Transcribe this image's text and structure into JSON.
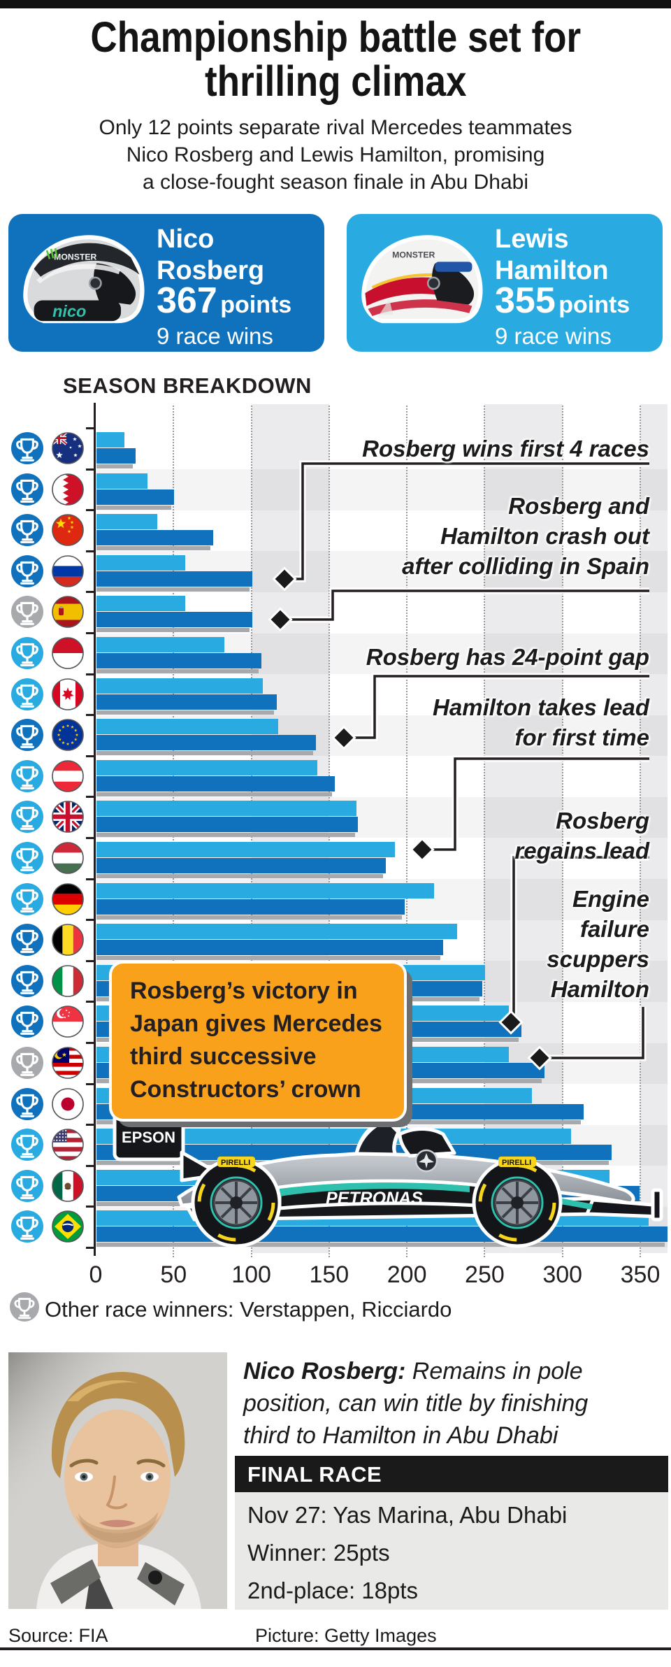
{
  "header": {
    "title_line1": "Championship battle set for",
    "title_line2": "thrilling climax",
    "subtitle_lines": [
      "Only 12 points separate rival Mercedes teammates",
      "Nico Rosberg and Lewis Hamilton, promising",
      "a close-fought season finale in Abu Dhabi"
    ]
  },
  "colors": {
    "rosberg": "#1072bc",
    "hamilton": "#29abe2",
    "other": "#a7a9ac",
    "bar_shadow": "#a7a9ac",
    "callout_orange": "#f9a11b"
  },
  "drivers": {
    "rosberg": {
      "first": "Nico",
      "last": "Rosberg",
      "points": "367",
      "points_label": "points",
      "wins": "9 race wins"
    },
    "hamilton": {
      "first": "Lewis",
      "last": "Hamilton",
      "points": "355",
      "points_label": "points",
      "wins": "9 race wins"
    }
  },
  "chart_data": {
    "type": "bar",
    "title": "SEASON BREAKDOWN",
    "orientation": "horizontal",
    "xlim": [
      0,
      350
    ],
    "x_ticks": [
      0,
      50,
      100,
      150,
      200,
      250,
      300,
      350
    ],
    "grid": "dotted vertical every 50",
    "series": [
      {
        "name": "Hamilton cumulative points",
        "color": "#29abe2"
      },
      {
        "name": "Rosberg cumulative points",
        "color": "#1072bc"
      }
    ],
    "races": [
      {
        "country": "Australia",
        "code": "au",
        "winner": "rosberg",
        "hamilton": 18,
        "rosberg": 25
      },
      {
        "country": "Bahrain",
        "code": "bh",
        "winner": "rosberg",
        "hamilton": 33,
        "rosberg": 50
      },
      {
        "country": "China",
        "code": "cn",
        "winner": "rosberg",
        "hamilton": 39,
        "rosberg": 75
      },
      {
        "country": "Russia",
        "code": "ru",
        "winner": "rosberg",
        "hamilton": 57,
        "rosberg": 100
      },
      {
        "country": "Spain",
        "code": "es",
        "winner": "other",
        "hamilton": 57,
        "rosberg": 100
      },
      {
        "country": "Monaco",
        "code": "mc",
        "winner": "hamilton",
        "hamilton": 82,
        "rosberg": 106
      },
      {
        "country": "Canada",
        "code": "ca",
        "winner": "hamilton",
        "hamilton": 107,
        "rosberg": 116
      },
      {
        "country": "Europe",
        "code": "eu",
        "winner": "rosberg",
        "hamilton": 117,
        "rosberg": 141
      },
      {
        "country": "Austria",
        "code": "at",
        "winner": "hamilton",
        "hamilton": 142,
        "rosberg": 153
      },
      {
        "country": "Britain",
        "code": "gb",
        "winner": "hamilton",
        "hamilton": 167,
        "rosberg": 168
      },
      {
        "country": "Hungary",
        "code": "hu",
        "winner": "hamilton",
        "hamilton": 192,
        "rosberg": 186
      },
      {
        "country": "Germany",
        "code": "de",
        "winner": "hamilton",
        "hamilton": 217,
        "rosberg": 198
      },
      {
        "country": "Belgium",
        "code": "be",
        "winner": "rosberg",
        "hamilton": 232,
        "rosberg": 223
      },
      {
        "country": "Italy",
        "code": "it",
        "winner": "rosberg",
        "hamilton": 250,
        "rosberg": 248
      },
      {
        "country": "Singapore",
        "code": "sg",
        "winner": "rosberg",
        "hamilton": 265,
        "rosberg": 273
      },
      {
        "country": "Malaysia",
        "code": "my",
        "winner": "other",
        "hamilton": 265,
        "rosberg": 288
      },
      {
        "country": "Japan",
        "code": "jp",
        "winner": "rosberg",
        "hamilton": 280,
        "rosberg": 313
      },
      {
        "country": "USA",
        "code": "us",
        "winner": "hamilton",
        "hamilton": 305,
        "rosberg": 331
      },
      {
        "country": "Mexico",
        "code": "mx",
        "winner": "hamilton",
        "hamilton": 330,
        "rosberg": 349
      },
      {
        "country": "Brazil",
        "code": "br",
        "winner": "hamilton",
        "hamilton": 355,
        "rosberg": 367
      }
    ],
    "annotations": [
      {
        "lines": [
          "Rosberg wins first 4 races"
        ]
      },
      {
        "lines": [
          "Rosberg and",
          "Hamilton crash out",
          "after colliding in Spain"
        ]
      },
      {
        "lines": [
          "Rosberg has 24-point gap"
        ]
      },
      {
        "lines": [
          "Hamilton takes lead",
          "for first time"
        ]
      },
      {
        "lines": [
          "Rosberg",
          "regains lead"
        ]
      },
      {
        "lines": [
          "Engine",
          "failure",
          "scuppers",
          "Hamilton"
        ]
      }
    ],
    "callout_lines": [
      "Rosberg’s victory in",
      "Japan gives Mercedes",
      "third successive",
      "Constructors’ crown"
    ],
    "legend": "Other race winners: Verstappen, Ricciardo"
  },
  "footer": {
    "note_bold": "Nico Rosberg:",
    "note_lines": [
      " Remains in pole",
      "position, can win title by finishing",
      "third to Hamilton in Abu Dhabi"
    ],
    "final_race_label": "FINAL RACE",
    "final_lines": [
      "Nov 27: Yas Marina, Abu Dhabi",
      "Winner: 25pts",
      "2nd-place: 18pts"
    ],
    "source": "Source: FIA",
    "picture": "Picture: Getty Images"
  }
}
